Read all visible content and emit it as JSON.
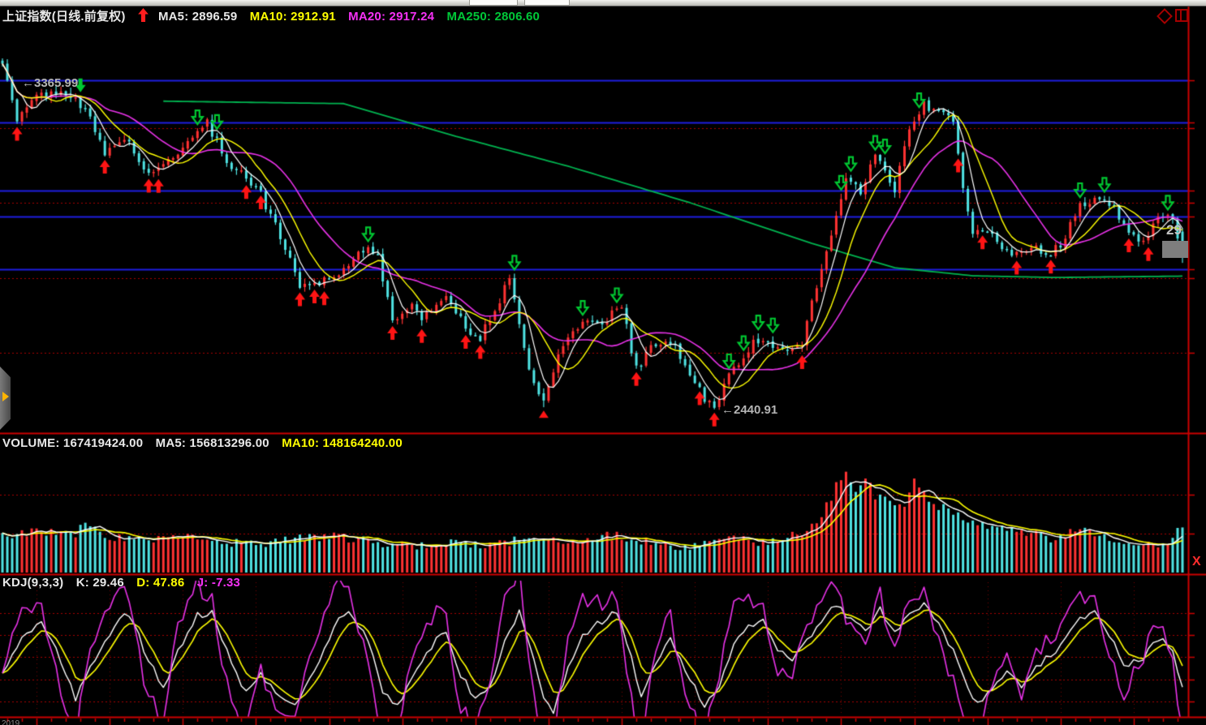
{
  "window": {
    "top_strip_segments": 2
  },
  "header": {
    "title": "上证指数(日线.前复权)",
    "signal_arrow": "up-arrow-icon",
    "ma_labels": [
      {
        "text": "MA5: 2896.59"
      },
      {
        "text": "MA10: 2912.91"
      },
      {
        "text": "MA20: 2917.24"
      },
      {
        "text": "MA250: 2806.60"
      }
    ]
  },
  "volume_header": {
    "volume_label": "VOLUME: 167419424.00",
    "ma5_label": "MA5: 156813296.00",
    "ma10_label": "MA10: 148164240.00"
  },
  "kdj_header": {
    "indicator_label": "KDJ(9,3,3)",
    "k_label": "K: 29.46",
    "d_label": "D: 47.86",
    "j_label": "J: -7.33"
  },
  "annotations": {
    "high_label": "←3365.99",
    "low_label": "←2440.91",
    "last_price_partial": "29",
    "pane_x_label": "X",
    "bottom_left_date": "2019"
  },
  "colors": {
    "background": "#000000",
    "candle_up": "#ff3232",
    "candle_down": "#4fe3e3",
    "ma5": "#ffffff",
    "ma10": "#ffff00",
    "ma20": "#e832e8",
    "ma250": "#00b450",
    "grid_blue": "#1e1ee0",
    "grid_dotted_red": "#aa0000",
    "panel_border_red": "#cc0000",
    "buy_arrow_red": "#ff1414",
    "sell_arrow_green": "#00c832",
    "label_gray": "#b4b4b4"
  },
  "chart_data": [
    {
      "type": "candlestick",
      "title": "上证指数(日线.前复权)",
      "n": 243,
      "ylim": [
        2375,
        3548
      ],
      "high_value": 3365.99,
      "low_value": 2440.91,
      "ma5": 2896.59,
      "ma10": 2912.91,
      "ma20": 2917.24,
      "ma250": 2806.6,
      "close_anchors": [
        [
          0,
          3435
        ],
        [
          3,
          3268
        ],
        [
          7,
          3343
        ],
        [
          14,
          3350
        ],
        [
          17,
          3303
        ],
        [
          21,
          3175
        ],
        [
          25,
          3226
        ],
        [
          30,
          3110
        ],
        [
          35,
          3170
        ],
        [
          39,
          3226
        ],
        [
          42,
          3264
        ],
        [
          46,
          3156
        ],
        [
          50,
          3110
        ],
        [
          53,
          3058
        ],
        [
          57,
          2941
        ],
        [
          61,
          2797
        ],
        [
          66,
          2813
        ],
        [
          70,
          2843
        ],
        [
          75,
          2918
        ],
        [
          77,
          2876
        ],
        [
          80,
          2692
        ],
        [
          84,
          2750
        ],
        [
          86,
          2692
        ],
        [
          91,
          2773
        ],
        [
          95,
          2680
        ],
        [
          98,
          2643
        ],
        [
          100,
          2703
        ],
        [
          104,
          2813
        ],
        [
          108,
          2563
        ],
        [
          111,
          2460
        ],
        [
          115,
          2633
        ],
        [
          119,
          2689
        ],
        [
          123,
          2694
        ],
        [
          127,
          2736
        ],
        [
          130,
          2554
        ],
        [
          134,
          2633
        ],
        [
          138,
          2619
        ],
        [
          141,
          2540
        ],
        [
          144,
          2470
        ],
        [
          146,
          2452
        ],
        [
          150,
          2563
        ],
        [
          154,
          2633
        ],
        [
          159,
          2619
        ],
        [
          164,
          2619
        ],
        [
          166,
          2750
        ],
        [
          170,
          2937
        ],
        [
          173,
          3100
        ],
        [
          176,
          3063
        ],
        [
          179,
          3170
        ],
        [
          183,
          3077
        ],
        [
          186,
          3240
        ],
        [
          189,
          3320
        ],
        [
          192,
          3296
        ],
        [
          195,
          3264
        ],
        [
          197,
          3086
        ],
        [
          199,
          2937
        ],
        [
          202,
          2960
        ],
        [
          205,
          2890
        ],
        [
          208,
          2890
        ],
        [
          211,
          2913
        ],
        [
          215,
          2883
        ],
        [
          218,
          2937
        ],
        [
          221,
          3030
        ],
        [
          225,
          3053
        ],
        [
          228,
          3016
        ],
        [
          231,
          2937
        ],
        [
          234,
          2930
        ],
        [
          238,
          3007
        ],
        [
          240,
          2993
        ],
        [
          242,
          2890
        ]
      ],
      "spikes": [
        {
          "i": 111,
          "low": 2447
        },
        {
          "i": 146,
          "low": 2440.91
        }
      ],
      "forced_high": {
        "i": 14,
        "high": 3365.99
      },
      "last_candle": {
        "open": 2952,
        "close": 2890,
        "high": 2962,
        "low": 2862
      },
      "ma250_anchors": [
        [
          33,
          3327
        ],
        [
          70,
          3320
        ],
        [
          93,
          3226
        ],
        [
          116,
          3140
        ],
        [
          141,
          3035
        ],
        [
          166,
          2918
        ],
        [
          183,
          2848
        ],
        [
          199,
          2825
        ],
        [
          216,
          2820
        ],
        [
          242,
          2824
        ]
      ],
      "hlines_blue": [
        3387,
        3266,
        3070,
        2995,
        2844
      ],
      "hlines_dotted": [
        3250,
        3035,
        2818,
        2603
      ],
      "markers": [
        {
          "i": 3,
          "t": "ru"
        },
        {
          "i": 21,
          "t": "ru"
        },
        {
          "i": 30,
          "t": "ru"
        },
        {
          "i": 32,
          "t": "ru"
        },
        {
          "i": 50,
          "t": "ru"
        },
        {
          "i": 53,
          "t": "ru"
        },
        {
          "i": 61,
          "t": "ru"
        },
        {
          "i": 64,
          "t": "ru"
        },
        {
          "i": 66,
          "t": "ru"
        },
        {
          "i": 80,
          "t": "ru"
        },
        {
          "i": 86,
          "t": "ru"
        },
        {
          "i": 95,
          "t": "ru"
        },
        {
          "i": 98,
          "t": "ru"
        },
        {
          "i": 130,
          "t": "ru"
        },
        {
          "i": 143,
          "t": "ru"
        },
        {
          "i": 146,
          "t": "ru"
        },
        {
          "i": 164,
          "t": "ru"
        },
        {
          "i": 196,
          "t": "ru"
        },
        {
          "i": 201,
          "t": "ru"
        },
        {
          "i": 208,
          "t": "ru"
        },
        {
          "i": 215,
          "t": "ru"
        },
        {
          "i": 231,
          "t": "ru"
        },
        {
          "i": 235,
          "t": "ru"
        },
        {
          "i": 16,
          "t": "gs"
        },
        {
          "i": 40,
          "t": "gh"
        },
        {
          "i": 44,
          "t": "gh"
        },
        {
          "i": 75,
          "t": "gh"
        },
        {
          "i": 105,
          "t": "gh"
        },
        {
          "i": 119,
          "t": "gh"
        },
        {
          "i": 126,
          "t": "gh"
        },
        {
          "i": 149,
          "t": "gh"
        },
        {
          "i": 152,
          "t": "gh"
        },
        {
          "i": 155,
          "t": "gh"
        },
        {
          "i": 158,
          "t": "gh"
        },
        {
          "i": 172,
          "t": "gh"
        },
        {
          "i": 174,
          "t": "gh"
        },
        {
          "i": 179,
          "t": "gh"
        },
        {
          "i": 181,
          "t": "gh"
        },
        {
          "i": 188,
          "t": "gh"
        },
        {
          "i": 221,
          "t": "gh"
        },
        {
          "i": 226,
          "t": "gh"
        },
        {
          "i": 239,
          "t": "gh"
        },
        {
          "i": 111,
          "t": "rt"
        }
      ]
    },
    {
      "type": "bar",
      "name": "VOLUME",
      "current": 167419424.0,
      "ma5": 156813296.0,
      "ma10": 148164240.0,
      "ylim": [
        0,
        450000000
      ],
      "gridline_values": [
        292000000,
        146000000
      ],
      "anchors_frac": [
        [
          0,
          0.3
        ],
        [
          8,
          0.34
        ],
        [
          15,
          0.3
        ],
        [
          17,
          0.42
        ],
        [
          22,
          0.3
        ],
        [
          30,
          0.27
        ],
        [
          38,
          0.33
        ],
        [
          45,
          0.26
        ],
        [
          52,
          0.24
        ],
        [
          60,
          0.28
        ],
        [
          68,
          0.3
        ],
        [
          75,
          0.26
        ],
        [
          80,
          0.23
        ],
        [
          88,
          0.22
        ],
        [
          95,
          0.25
        ],
        [
          100,
          0.23
        ],
        [
          105,
          0.26
        ],
        [
          108,
          0.3
        ],
        [
          112,
          0.26
        ],
        [
          118,
          0.27
        ],
        [
          124,
          0.31
        ],
        [
          130,
          0.28
        ],
        [
          135,
          0.24
        ],
        [
          140,
          0.21
        ],
        [
          146,
          0.25
        ],
        [
          151,
          0.29
        ],
        [
          156,
          0.25
        ],
        [
          161,
          0.29
        ],
        [
          164,
          0.32
        ],
        [
          167,
          0.4
        ],
        [
          169,
          0.55
        ],
        [
          171,
          0.72
        ],
        [
          173,
          0.88
        ],
        [
          175,
          0.7
        ],
        [
          177,
          0.8
        ],
        [
          179,
          0.63
        ],
        [
          182,
          0.58
        ],
        [
          185,
          0.54
        ],
        [
          187,
          0.76
        ],
        [
          190,
          0.58
        ],
        [
          193,
          0.54
        ],
        [
          196,
          0.47
        ],
        [
          199,
          0.42
        ],
        [
          203,
          0.39
        ],
        [
          207,
          0.35
        ],
        [
          211,
          0.32
        ],
        [
          215,
          0.29
        ],
        [
          219,
          0.33
        ],
        [
          222,
          0.37
        ],
        [
          226,
          0.31
        ],
        [
          230,
          0.27
        ],
        [
          234,
          0.25
        ],
        [
          238,
          0.23
        ],
        [
          242,
          0.37
        ]
      ]
    },
    {
      "type": "line",
      "name": "KDJ(9,3,3)",
      "k": 29.46,
      "d": 47.86,
      "j": -7.33,
      "ylim": [
        10,
        101
      ],
      "gridlines": [
        80,
        65,
        50,
        35,
        20
      ],
      "k_anchors": [
        [
          0,
          38
        ],
        [
          4,
          62
        ],
        [
          8,
          75
        ],
        [
          12,
          48
        ],
        [
          15,
          22
        ],
        [
          19,
          50
        ],
        [
          23,
          72
        ],
        [
          26,
          80
        ],
        [
          30,
          48
        ],
        [
          33,
          28
        ],
        [
          36,
          55
        ],
        [
          40,
          78
        ],
        [
          43,
          82
        ],
        [
          47,
          45
        ],
        [
          50,
          25
        ],
        [
          53,
          38
        ],
        [
          56,
          28
        ],
        [
          60,
          18
        ],
        [
          64,
          40
        ],
        [
          68,
          72
        ],
        [
          71,
          80
        ],
        [
          75,
          62
        ],
        [
          78,
          28
        ],
        [
          81,
          18
        ],
        [
          85,
          40
        ],
        [
          88,
          58
        ],
        [
          91,
          68
        ],
        [
          94,
          38
        ],
        [
          97,
          22
        ],
        [
          100,
          30
        ],
        [
          103,
          62
        ],
        [
          106,
          80
        ],
        [
          109,
          50
        ],
        [
          111,
          20
        ],
        [
          113,
          14
        ],
        [
          116,
          42
        ],
        [
          119,
          66
        ],
        [
          123,
          74
        ],
        [
          126,
          82
        ],
        [
          129,
          50
        ],
        [
          131,
          22
        ],
        [
          134,
          48
        ],
        [
          137,
          62
        ],
        [
          140,
          42
        ],
        [
          144,
          16
        ],
        [
          147,
          32
        ],
        [
          150,
          58
        ],
        [
          153,
          72
        ],
        [
          156,
          76
        ],
        [
          159,
          55
        ],
        [
          162,
          48
        ],
        [
          165,
          62
        ],
        [
          168,
          75
        ],
        [
          171,
          85
        ],
        [
          174,
          76
        ],
        [
          177,
          68
        ],
        [
          180,
          82
        ],
        [
          183,
          68
        ],
        [
          186,
          80
        ],
        [
          189,
          86
        ],
        [
          192,
          72
        ],
        [
          195,
          55
        ],
        [
          198,
          30
        ],
        [
          200,
          18
        ],
        [
          203,
          30
        ],
        [
          206,
          42
        ],
        [
          209,
          30
        ],
        [
          212,
          44
        ],
        [
          215,
          52
        ],
        [
          218,
          62
        ],
        [
          221,
          76
        ],
        [
          224,
          82
        ],
        [
          227,
          65
        ],
        [
          230,
          45
        ],
        [
          234,
          50
        ],
        [
          238,
          65
        ],
        [
          240,
          55
        ],
        [
          242,
          29.46
        ]
      ]
    }
  ]
}
